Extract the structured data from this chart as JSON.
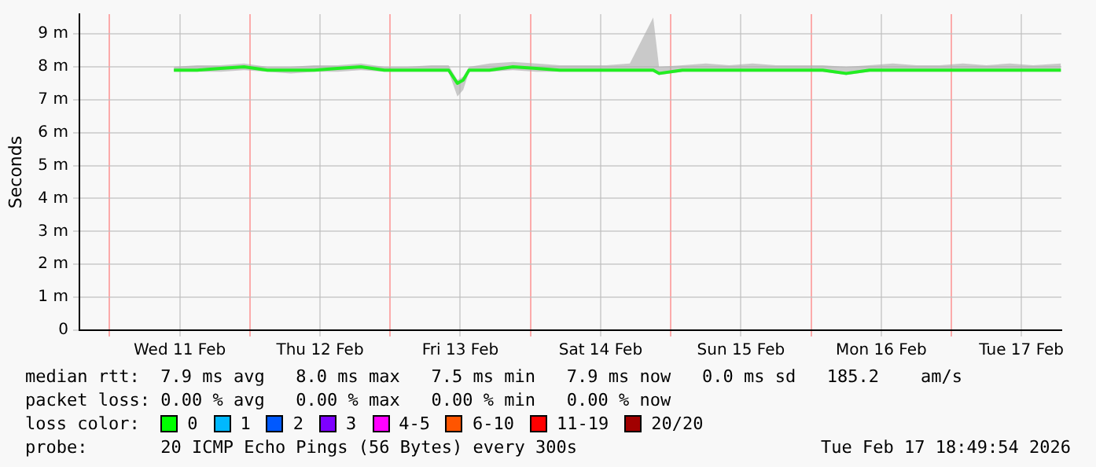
{
  "chart_data": {
    "type": "line",
    "ylabel": "Seconds",
    "legend": false,
    "grid": true,
    "x": [
      "2026-02-11T11:00",
      "2026-02-11T15:00",
      "2026-02-11T19:00",
      "2026-02-11T23:00",
      "2026-02-12T03:00",
      "2026-02-12T07:00",
      "2026-02-12T11:00",
      "2026-02-12T15:00",
      "2026-02-12T19:00",
      "2026-02-12T23:00",
      "2026-02-13T03:00",
      "2026-02-13T07:00",
      "2026-02-13T10:00",
      "2026-02-13T11:30",
      "2026-02-13T12:30",
      "2026-02-13T13:30",
      "2026-02-13T17:00",
      "2026-02-13T21:00",
      "2026-02-14T01:00",
      "2026-02-14T05:00",
      "2026-02-14T09:00",
      "2026-02-14T13:00",
      "2026-02-14T17:00",
      "2026-02-14T21:00",
      "2026-02-14T22:00",
      "2026-02-15T02:00",
      "2026-02-15T06:00",
      "2026-02-15T10:00",
      "2026-02-15T14:00",
      "2026-02-15T18:00",
      "2026-02-15T22:00",
      "2026-02-16T02:00",
      "2026-02-16T06:00",
      "2026-02-16T10:00",
      "2026-02-16T14:00",
      "2026-02-16T18:00",
      "2026-02-16T22:00",
      "2026-02-17T02:00",
      "2026-02-17T06:00",
      "2026-02-17T10:00",
      "2026-02-17T14:00",
      "2026-02-17T18:45"
    ],
    "series": [
      {
        "color": "#22ee22",
        "values": [
          7.9,
          7.9,
          7.95,
          8,
          7.9,
          7.9,
          7.9,
          7.95,
          8,
          7.9,
          7.9,
          7.9,
          7.9,
          7.5,
          7.6,
          7.9,
          7.9,
          8,
          7.95,
          7.9,
          7.9,
          7.9,
          7.9,
          7.9,
          7.8,
          7.9,
          7.9,
          7.9,
          7.9,
          7.9,
          7.9,
          7.9,
          7.8,
          7.9,
          7.9,
          7.9,
          7.9,
          7.9,
          7.9,
          7.9,
          7.9,
          7.9
        ],
        "lower": [
          7.85,
          7.85,
          7.85,
          7.9,
          7.85,
          7.8,
          7.85,
          7.85,
          7.9,
          7.85,
          7.85,
          7.85,
          7.85,
          7.1,
          7.3,
          7.85,
          7.85,
          7.9,
          7.85,
          7.85,
          7.85,
          7.85,
          7.85,
          7.85,
          7.75,
          7.85,
          7.85,
          7.85,
          7.85,
          7.85,
          7.85,
          7.85,
          7.75,
          7.85,
          7.85,
          7.85,
          7.85,
          7.85,
          7.85,
          7.85,
          7.85,
          7.85
        ],
        "upper": [
          8,
          8.05,
          8.05,
          8.1,
          8,
          8,
          8.05,
          8.05,
          8.1,
          8,
          8,
          8.05,
          8.05,
          7.6,
          7.7,
          8,
          8.1,
          8.15,
          8.1,
          8.05,
          8.05,
          8.05,
          8.1,
          9.5,
          8,
          8.05,
          8.1,
          8.05,
          8.1,
          8.05,
          8.05,
          8.05,
          8,
          8.05,
          8.1,
          8.05,
          8.05,
          8.1,
          8.05,
          8.1,
          8.05,
          8.1
        ]
      }
    ],
    "xlim": [
      "2026-02-10T18:50",
      "2026-02-17T18:50"
    ],
    "xticks": [
      {
        "value": "2026-02-11T00:00",
        "label": null
      },
      {
        "value": "2026-02-11T12:00",
        "label": "Wed 11 Feb"
      },
      {
        "value": "2026-02-12T00:00",
        "label": null
      },
      {
        "value": "2026-02-12T12:00",
        "label": "Thu 12 Feb"
      },
      {
        "value": "2026-02-13T00:00",
        "label": null
      },
      {
        "value": "2026-02-13T12:00",
        "label": "Fri 13 Feb"
      },
      {
        "value": "2026-02-14T00:00",
        "label": null
      },
      {
        "value": "2026-02-14T12:00",
        "label": "Sat 14 Feb"
      },
      {
        "value": "2026-02-15T00:00",
        "label": null
      },
      {
        "value": "2026-02-15T12:00",
        "label": "Sun 15 Feb"
      },
      {
        "value": "2026-02-16T00:00",
        "label": null
      },
      {
        "value": "2026-02-16T12:00",
        "label": "Mon 16 Feb"
      },
      {
        "value": "2026-02-17T00:00",
        "label": null
      },
      {
        "value": "2026-02-17T12:00",
        "label": "Tue 17 Feb"
      }
    ],
    "ylim": [
      0,
      9.6
    ],
    "yticks": [
      0,
      {
        "value": 1,
        "label": "1 m"
      },
      {
        "value": 2,
        "label": "2 m"
      },
      {
        "value": 3,
        "label": "3 m"
      },
      {
        "value": 4,
        "label": "4 m"
      },
      {
        "value": 5,
        "label": "5 m"
      },
      {
        "value": 6,
        "label": "6 m"
      },
      {
        "value": 7,
        "label": "7 m"
      },
      {
        "value": 8,
        "label": "8 m"
      },
      {
        "value": 9,
        "label": "9 m"
      }
    ],
    "annotations": [
      "median rtt:  7.9 ms avg   8.0 ms max   7.5 ms min   7.9 ms now   0.0 ms sd   185.2    am/s",
      "packet loss: 0.00 % avg   0.00 % max   0.00 % min   0.00 % now",
      "loss color:",
      "0",
      "1",
      "2",
      "3",
      "4-5",
      "6-10",
      "11-19",
      "20/20",
      "probe:       20 ICMP Echo Pings (56 Bytes) every 300s",
      "Tue Feb 17 18:49:54 2026"
    ]
  }
}
